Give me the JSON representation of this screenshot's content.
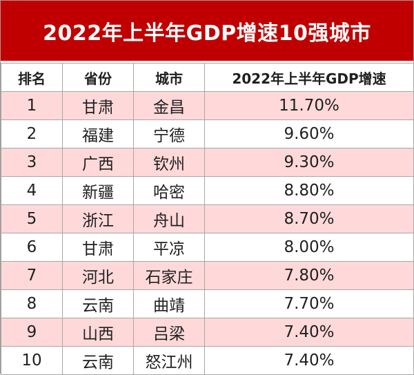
{
  "title": "2022年上半年GDP增速10强城市",
  "columns": {
    "rank": "排名",
    "province": "省份",
    "city": "城市",
    "rate": "2022年上半年GDP增速"
  },
  "rows": [
    {
      "rank": "1",
      "province": "甘肃",
      "city": "金昌",
      "rate": "11.70%"
    },
    {
      "rank": "2",
      "province": "福建",
      "city": "宁德",
      "rate": "9.60%"
    },
    {
      "rank": "3",
      "province": "广西",
      "city": "钦州",
      "rate": "9.30%"
    },
    {
      "rank": "4",
      "province": "新疆",
      "city": "哈密",
      "rate": "8.80%"
    },
    {
      "rank": "5",
      "province": "浙江",
      "city": "舟山",
      "rate": "8.70%"
    },
    {
      "rank": "6",
      "province": "甘肃",
      "city": "平凉",
      "rate": "8.00%"
    },
    {
      "rank": "7",
      "province": "河北",
      "city": "石家庄",
      "rate": "7.80%"
    },
    {
      "rank": "8",
      "province": "云南",
      "city": "曲靖",
      "rate": "7.70%"
    },
    {
      "rank": "9",
      "province": "山西",
      "city": "吕梁",
      "rate": "7.40%"
    },
    {
      "rank": "10",
      "province": "云南",
      "city": "怒江州",
      "rate": "7.40%"
    }
  ],
  "colors": {
    "header_red": "#c00000",
    "stripe_pink": "#ffd9d9"
  }
}
